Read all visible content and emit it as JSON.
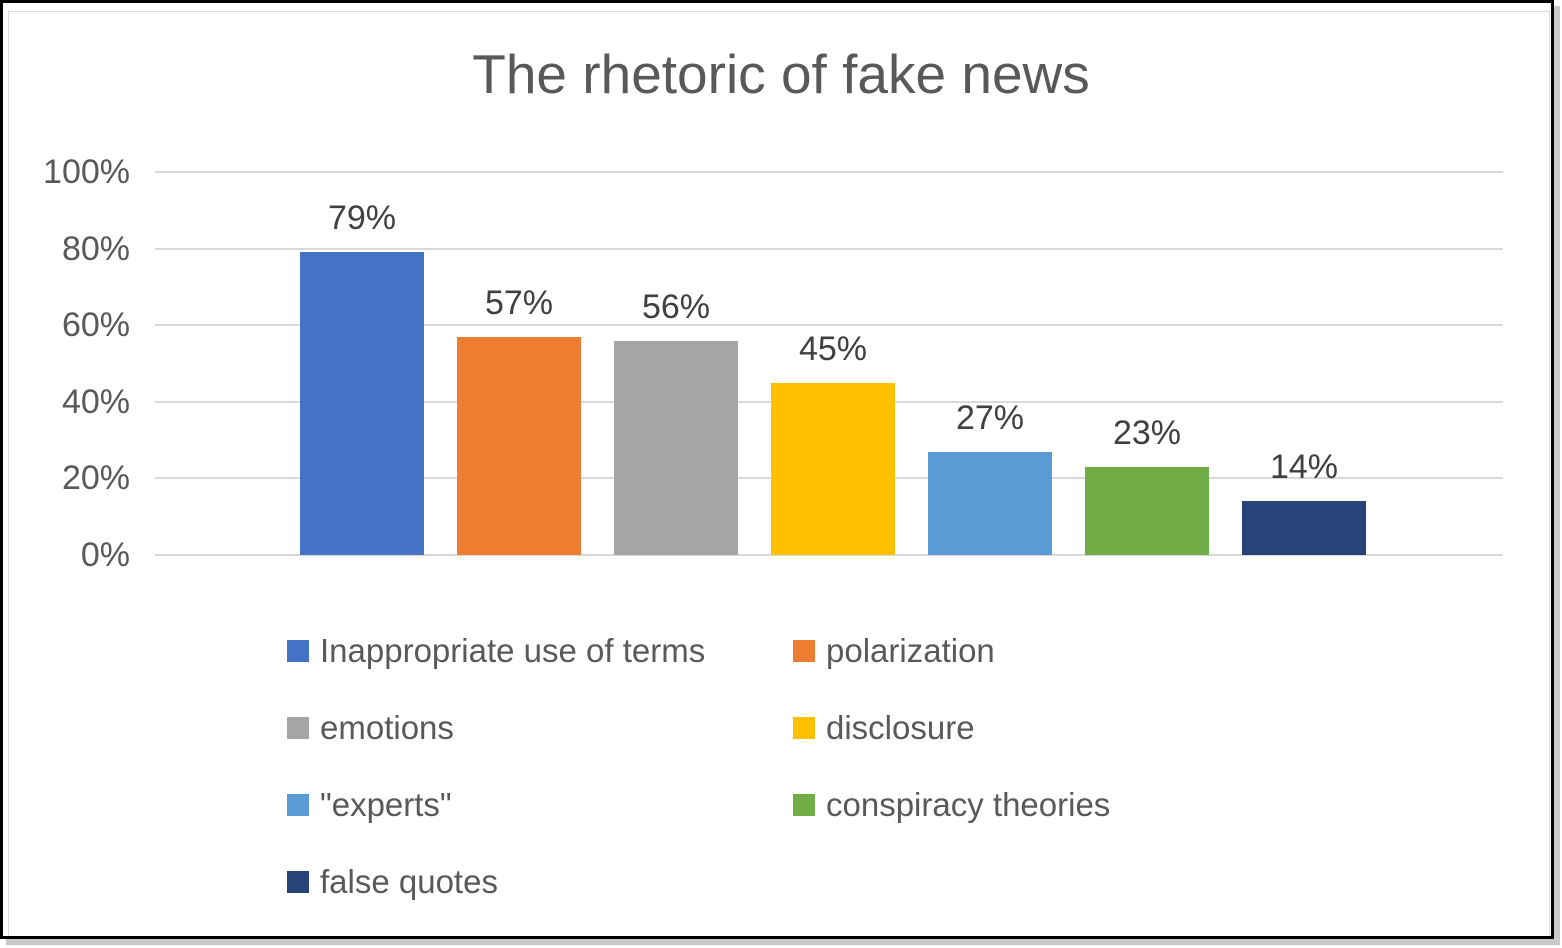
{
  "window": {
    "background": "#ffffff",
    "frame_border_color": "#000000",
    "frame_shadow_color": "#c9c9c9",
    "chart_area_border_color": "#dcdcdc"
  },
  "chart_data": {
    "type": "bar",
    "title": "The rhetoric of fake news",
    "title_color": "#595959",
    "series": [
      {
        "name": "Inappropriate use of terms",
        "value": 79,
        "label": "79%",
        "color": "#4472C4"
      },
      {
        "name": "polarization",
        "value": 57,
        "label": "57%",
        "color": "#ED7D31"
      },
      {
        "name": "emotions",
        "value": 56,
        "label": "56%",
        "color": "#A5A5A5"
      },
      {
        "name": "disclosure",
        "value": 45,
        "label": "45%",
        "color": "#FFC000"
      },
      {
        "name": "\"experts\"",
        "value": 27,
        "label": "27%",
        "color": "#5B9BD5"
      },
      {
        "name": "conspiracy theories",
        "value": 23,
        "label": "23%",
        "color": "#70AD47"
      },
      {
        "name": "false quotes",
        "value": 14,
        "label": "14%",
        "color": "#264478"
      }
    ],
    "y_axis": {
      "min": 0,
      "max": 100,
      "tick_step": 20,
      "tick_labels": [
        "0%",
        "20%",
        "40%",
        "60%",
        "80%",
        "100%"
      ],
      "label_color": "#595959"
    },
    "gridlines": true,
    "gridline_color": "#d9d9d9",
    "data_label_color": "#404040",
    "legend": {
      "position": "bottom",
      "columns": 2,
      "text_color": "#595959"
    }
  }
}
